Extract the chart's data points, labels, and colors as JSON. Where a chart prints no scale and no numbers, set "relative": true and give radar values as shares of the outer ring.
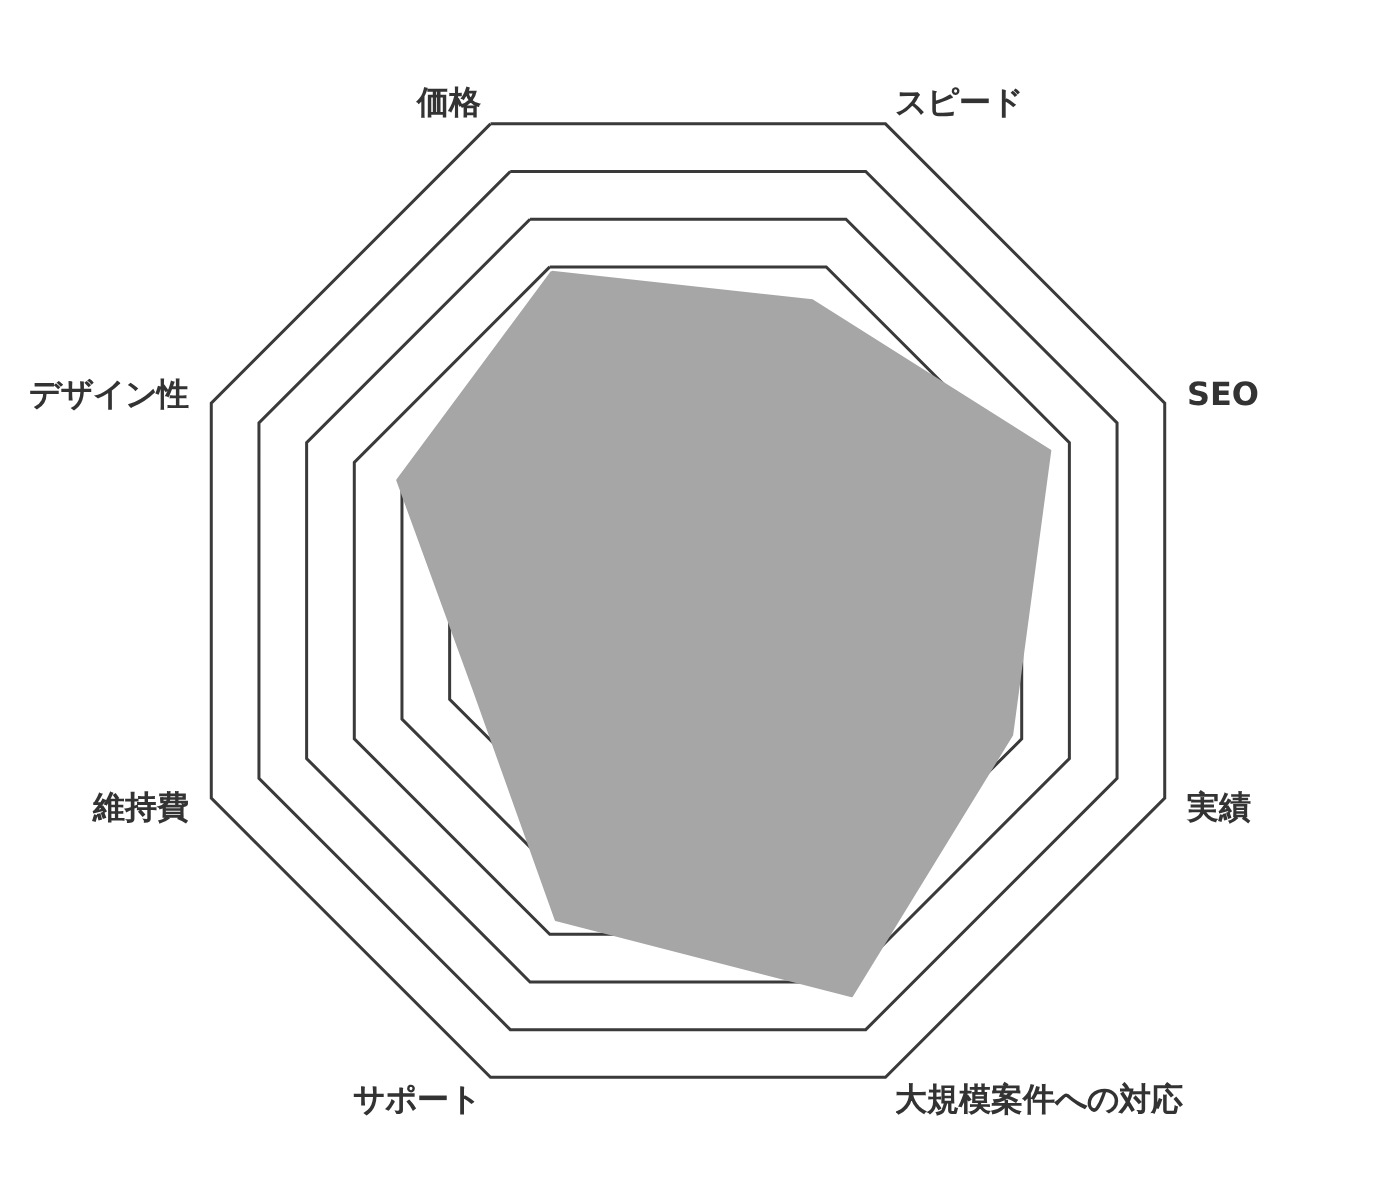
{
  "chart_data": {
    "type": "radar",
    "relative": true,
    "grid": true,
    "categories": [
      "価格",
      "スピード",
      "SEO",
      "実績",
      "大規模案件への対応",
      "サポート",
      "維持費",
      "デザイン性"
    ],
    "series": [
      {
        "color": "#a6a6a6",
        "values": [
          0.69,
          0.63,
          0.76,
          0.68,
          0.83,
          0.67,
          0.45,
          0.61
        ]
      }
    ]
  }
}
